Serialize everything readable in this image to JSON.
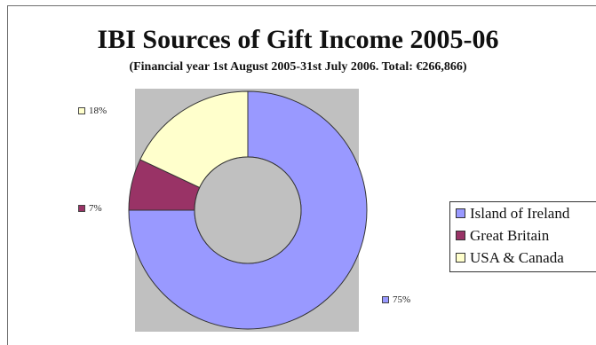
{
  "chart_data": {
    "type": "pie",
    "title": "IBI Sources of Gift Income 2005-06",
    "subtitle": "(Financial year 1st August 2005-31st July 2006. Total: €266,866)",
    "categories": [
      "Island of Ireland",
      "Great Britain",
      "USA & Canada"
    ],
    "values": [
      75,
      7,
      18
    ],
    "data_labels": [
      "75%",
      "7%",
      "18%"
    ],
    "colors": [
      "#9999ff",
      "#993366",
      "#ffffcc"
    ],
    "style": "doughnut",
    "legend_position": "right",
    "plot_background": "#c0c0c0"
  }
}
